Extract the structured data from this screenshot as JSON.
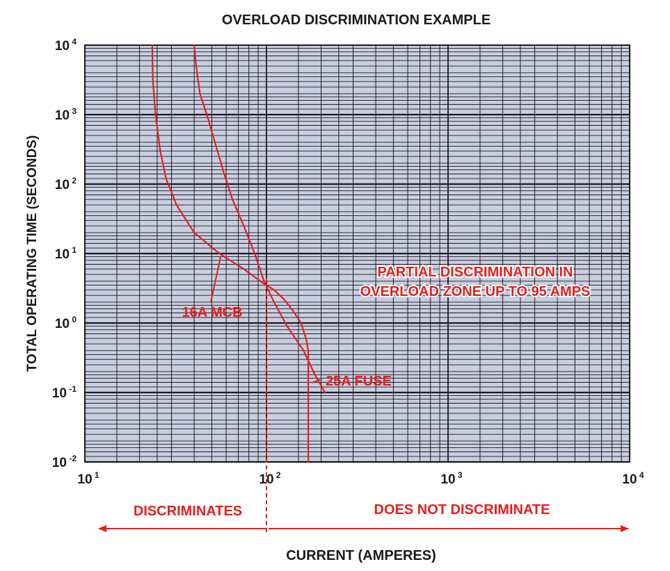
{
  "chart_data": {
    "type": "line",
    "title": "OVERLOAD DISCRIMINATION EXAMPLE",
    "xlabel": "CURRENT (AMPERES)",
    "ylabel": "TOTAL OPERATING TIME (SECONDS)",
    "xscale": "log",
    "yscale": "log",
    "xlim": [
      10,
      10000
    ],
    "ylim": [
      0.01,
      10000
    ],
    "grid": true,
    "plot_background": "#c9cde0",
    "line_color": "#e3201b",
    "x_ticks": [
      {
        "base": "10",
        "exp": "1",
        "value": 10
      },
      {
        "base": "10",
        "exp": "2",
        "value": 100
      },
      {
        "base": "10",
        "exp": "3",
        "value": 1000
      },
      {
        "base": "10",
        "exp": "4",
        "value": 10000
      }
    ],
    "y_ticks": [
      {
        "base": "10",
        "exp": "4",
        "value": 10000
      },
      {
        "base": "10",
        "exp": "3",
        "value": 1000
      },
      {
        "base": "10",
        "exp": "2",
        "value": 100
      },
      {
        "base": "10",
        "exp": "1",
        "value": 10
      },
      {
        "base": "10",
        "exp": "0",
        "value": 1
      },
      {
        "base": "10",
        "exp": "-1",
        "value": 0.1
      },
      {
        "base": "10",
        "exp": "-2",
        "value": 0.01
      }
    ],
    "series": [
      {
        "name": "16A MCB",
        "points": [
          [
            23.5,
            10000
          ],
          [
            23.7,
            3000
          ],
          [
            24.5,
            1000
          ],
          [
            26,
            300
          ],
          [
            28,
            120
          ],
          [
            32,
            50
          ],
          [
            40,
            20
          ],
          [
            55,
            10
          ],
          [
            75,
            6
          ],
          [
            95,
            3.8
          ],
          [
            110,
            3
          ],
          [
            125,
            2.2
          ],
          [
            140,
            1.5
          ],
          [
            155,
            1.0
          ],
          [
            165,
            0.6
          ],
          [
            170,
            0.4
          ],
          [
            170,
            0.2
          ],
          [
            170,
            0.05
          ],
          [
            170,
            0.01
          ]
        ]
      },
      {
        "name": "25A FUSE",
        "points": [
          [
            40,
            10000
          ],
          [
            41,
            5000
          ],
          [
            43,
            2000
          ],
          [
            47,
            1000
          ],
          [
            52,
            400
          ],
          [
            58,
            150
          ],
          [
            65,
            60
          ],
          [
            75,
            25
          ],
          [
            85,
            11
          ],
          [
            97,
            4
          ],
          [
            110,
            2
          ],
          [
            130,
            0.9
          ],
          [
            160,
            0.4
          ],
          [
            185,
            0.18
          ],
          [
            210,
            0.1
          ]
        ]
      }
    ],
    "annotations": {
      "mcb_label": "16A MCB",
      "fuse_label": "25A FUSE",
      "partial_line1": "PARTIAL DISCRIMINATION IN",
      "partial_line2": "OVERLOAD ZONE UP TO 95 AMPS",
      "discriminates": "DISCRIMINATES",
      "does_not_discriminate": "DOES NOT DISCRIMINATE",
      "boundary_current": 100
    }
  }
}
